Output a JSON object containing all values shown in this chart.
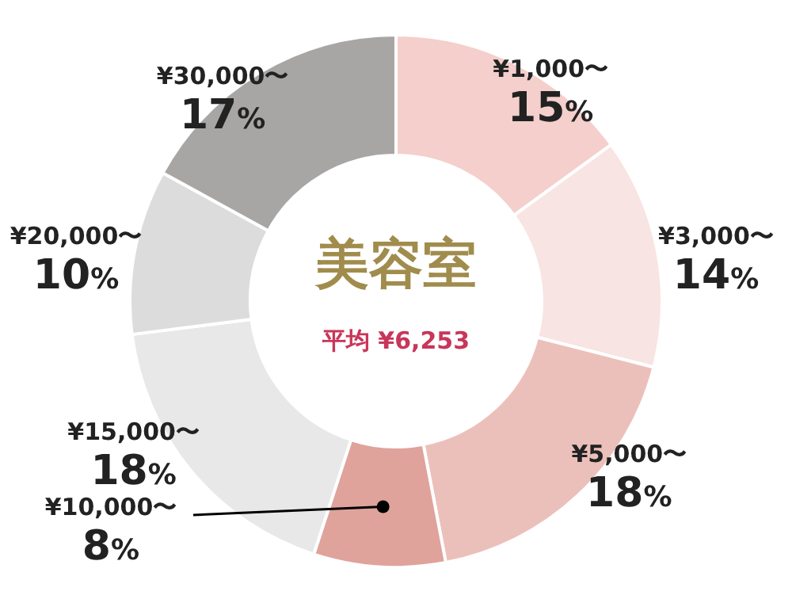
{
  "chart_data": {
    "type": "donut",
    "title": "美容室",
    "subtitle": "平均 ¥6,253",
    "categories": [
      "¥1,000〜",
      "¥3,000〜",
      "¥5,000〜",
      "¥10,000〜",
      "¥15,000〜",
      "¥20,000〜",
      "¥30,000〜"
    ],
    "values": [
      15,
      14,
      18,
      8,
      18,
      10,
      17
    ],
    "value_labels": [
      "15%",
      "14%",
      "18%",
      "8%",
      "18%",
      "10%",
      "17%"
    ],
    "colors": [
      "#f4cfcb",
      "#f8e4e2",
      "#ecc0ba",
      "#dfa39c",
      "#e8e8e8",
      "#dcdcdc",
      "#a8a5a5"
    ],
    "legend": false
  }
}
